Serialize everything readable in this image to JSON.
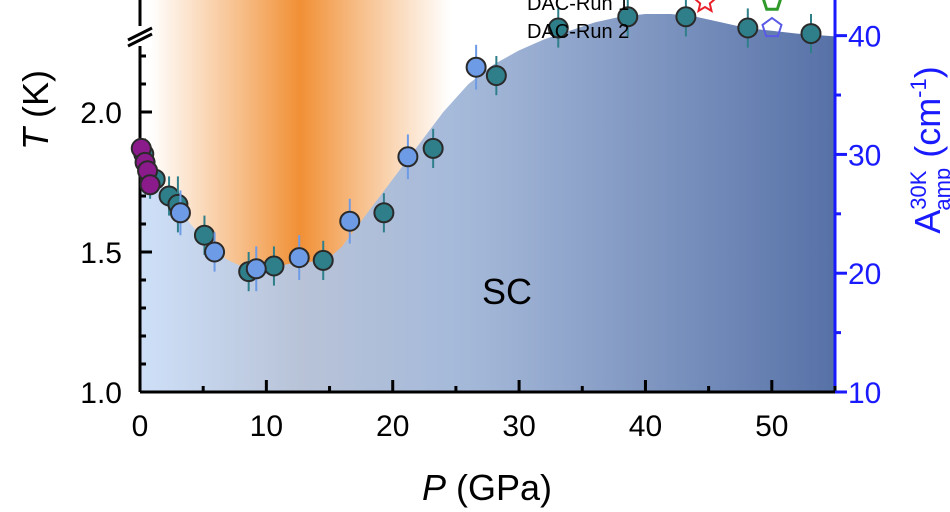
{
  "chart_data": {
    "type": "scatter",
    "xlabel": {
      "symbol": "P",
      "unit": " (GPa)"
    },
    "ylabel": {
      "symbol": "T",
      "unit": " (K)"
    },
    "y2label": {
      "base": "A",
      "sup": "30K",
      "sub": "amp",
      "unit_open": " (cm",
      "unit_exp": "-1",
      "unit_close": ")"
    },
    "xlim": [
      0,
      55
    ],
    "ylim": [
      1.0,
      2.4
    ],
    "y2lim": [
      10,
      43
    ],
    "x_ticks": [
      "0",
      "10",
      "20",
      "30",
      "40",
      "50"
    ],
    "y_ticks": [
      "1.0",
      "1.5",
      "2.0"
    ],
    "y2_ticks": [
      "10",
      "20",
      "30",
      "40"
    ],
    "region_label": "SC",
    "legend": [
      {
        "label": "DAC-Run 1",
        "markers": [
          "red-star-open",
          "green-pentagon-open"
        ]
      },
      {
        "label": "DAC-Run 2",
        "markers": [
          "blue-pentagon-open"
        ]
      }
    ],
    "sc_boundary": [
      [
        0,
        1.86
      ],
      [
        1,
        1.78
      ],
      [
        2,
        1.72
      ],
      [
        3,
        1.66
      ],
      [
        4,
        1.6
      ],
      [
        5,
        1.55
      ],
      [
        6,
        1.5
      ],
      [
        7,
        1.47
      ],
      [
        8,
        1.45
      ],
      [
        9,
        1.44
      ],
      [
        10,
        1.44
      ],
      [
        11,
        1.45
      ],
      [
        12,
        1.46
      ],
      [
        13,
        1.46
      ],
      [
        14,
        1.47
      ],
      [
        15,
        1.48
      ],
      [
        16,
        1.52
      ],
      [
        18,
        1.64
      ],
      [
        20,
        1.76
      ],
      [
        22,
        1.88
      ],
      [
        24,
        2.0
      ],
      [
        26,
        2.1
      ],
      [
        28,
        2.17
      ],
      [
        30,
        2.22
      ],
      [
        32,
        2.26
      ],
      [
        34,
        2.29
      ],
      [
        36,
        2.32
      ],
      [
        38,
        2.34
      ],
      [
        40,
        2.35
      ],
      [
        42,
        2.35
      ],
      [
        44,
        2.34
      ],
      [
        46,
        2.32
      ],
      [
        48,
        2.3
      ],
      [
        50,
        2.29
      ],
      [
        52,
        2.28
      ],
      [
        55,
        2.27
      ]
    ],
    "series": [
      {
        "color": "#2f7f8a",
        "points": [
          [
            0.3,
            1.85,
            0.05
          ],
          [
            0.8,
            1.76,
            0.07
          ],
          [
            1.2,
            1.76,
            0.05
          ],
          [
            2.3,
            1.7,
            0.07
          ],
          [
            3.0,
            1.67,
            0.1
          ],
          [
            5.1,
            1.56,
            0.07
          ],
          [
            8.6,
            1.43,
            0.07
          ],
          [
            10.6,
            1.45,
            0.07
          ],
          [
            14.5,
            1.47,
            0.07
          ],
          [
            19.3,
            1.64,
            0.07
          ],
          [
            23.2,
            1.87,
            0.07
          ],
          [
            28.2,
            2.13,
            0.07
          ],
          [
            33.1,
            2.3,
            0.07
          ],
          [
            38.6,
            2.34,
            0.07
          ],
          [
            43.2,
            2.34,
            0.07
          ],
          [
            48.1,
            2.3,
            0.07
          ],
          [
            53.1,
            2.28,
            0.07
          ]
        ]
      },
      {
        "color": "#6d9be6",
        "points": [
          [
            3.2,
            1.64,
            0.08
          ],
          [
            5.9,
            1.5,
            0.07
          ],
          [
            9.2,
            1.44,
            0.08
          ],
          [
            12.6,
            1.48,
            0.08
          ],
          [
            16.6,
            1.61,
            0.08
          ],
          [
            21.2,
            1.84,
            0.08
          ],
          [
            26.6,
            2.16,
            0.08
          ]
        ]
      },
      {
        "color": "#8b1a8b",
        "points": [
          [
            0.1,
            1.87,
            0.02
          ],
          [
            0.4,
            1.82,
            0.02
          ],
          [
            0.6,
            1.79,
            0.02
          ],
          [
            0.8,
            1.74,
            0.02
          ]
        ]
      }
    ]
  }
}
